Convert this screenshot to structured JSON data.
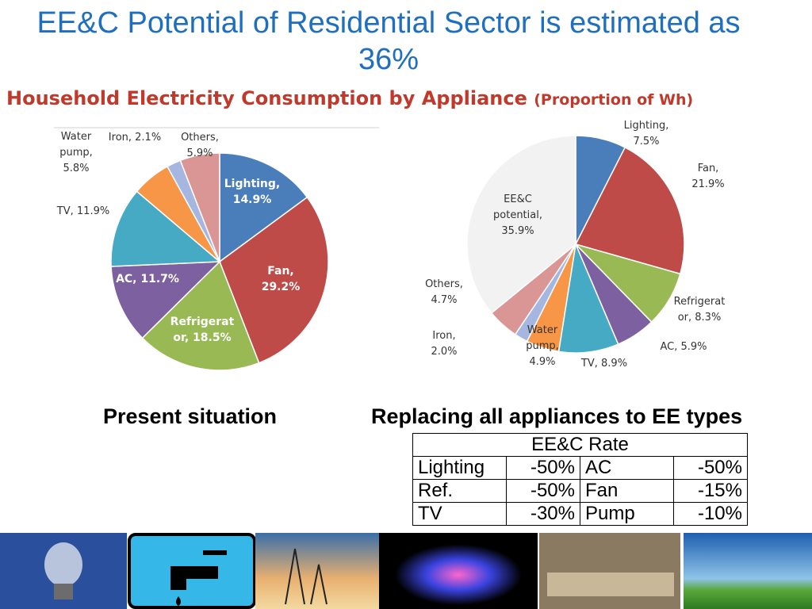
{
  "title": "EE&C Potential of Residential Sector is estimated as 36%",
  "subtitle": "Household Electricity Consumption by Appliance",
  "subtitle_note": "(Proportion of Wh)",
  "chart_data": [
    {
      "type": "pie",
      "caption": "Present situation",
      "values": [
        14.9,
        29.2,
        18.5,
        11.7,
        11.9,
        5.8,
        2.1,
        5.9
      ],
      "value_labels": [
        "Lighting,\n14.9%",
        "Fan,\n29.2%",
        "Refrigerat\nor, 18.5%",
        "AC, 11.7%",
        "TV, 11.9%",
        "Water\npump,\n5.8%",
        "Iron, 2.1%",
        "Others,\n5.9%"
      ],
      "colors": [
        "#4a7ebb",
        "#be4b48",
        "#98b954",
        "#7d60a0",
        "#46aac5",
        "#f79646",
        "#a5b7e0",
        "#d99694"
      ]
    },
    {
      "type": "pie",
      "caption": "Replacing all appliances to EE types",
      "values": [
        7.5,
        21.9,
        8.3,
        5.9,
        8.9,
        4.9,
        2.0,
        4.7,
        35.9
      ],
      "value_labels": [
        "Lighting,\n7.5%",
        "Fan,\n21.9%",
        "Refrigerat\nor, 8.3%",
        "AC, 5.9%",
        "TV, 8.9%",
        "Water\npump,\n4.9%",
        "Iron,\n2.0%",
        "Others,\n4.7%",
        "EE&C\npotential,\n35.9%"
      ],
      "colors": [
        "#4a7ebb",
        "#be4b48",
        "#98b954",
        "#7d60a0",
        "#46aac5",
        "#f79646",
        "#a5b7e0",
        "#d99694",
        "#f2f2f2"
      ]
    }
  ],
  "table": {
    "header": "EE&C Rate",
    "rows": [
      [
        "Lighting",
        "-50%",
        "AC",
        "-50%"
      ],
      [
        "Ref.",
        "-50%",
        "Fan",
        "-15%"
      ],
      [
        "TV",
        "-30%",
        "Pump",
        "-10%"
      ]
    ]
  }
}
